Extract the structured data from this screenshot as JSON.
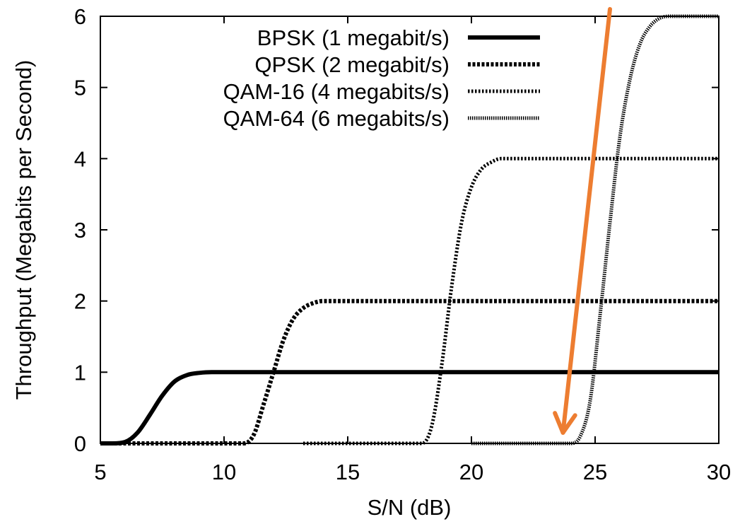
{
  "chart_data": {
    "type": "line",
    "title": "",
    "xlabel": "S/N (dB)",
    "ylabel": "Throughput (Megabits per Second)",
    "xlim": [
      5,
      30
    ],
    "ylim": [
      0,
      6
    ],
    "xticks": [
      "5",
      "10",
      "15",
      "20",
      "25",
      "30"
    ],
    "yticks": [
      "0",
      "1",
      "2",
      "3",
      "4",
      "5",
      "6"
    ],
    "grid": false,
    "legend_position": "top-right",
    "series": [
      {
        "name": "BPSK (1 megabit/s)",
        "style": "solid",
        "x": [
          5,
          5.5,
          6,
          6.5,
          7,
          7.5,
          8,
          8.5,
          9,
          9.5,
          10,
          12,
          15,
          20,
          25,
          30
        ],
        "y": [
          0,
          0,
          0.02,
          0.15,
          0.4,
          0.67,
          0.87,
          0.96,
          0.99,
          1,
          1,
          1,
          1,
          1,
          1,
          1
        ]
      },
      {
        "name": "QPSK (2 megabit/s)",
        "style": "dashed",
        "x": [
          5,
          8,
          10.8,
          11.2,
          11.6,
          12,
          12.4,
          12.8,
          13.2,
          13.6,
          14,
          15,
          20,
          25,
          30
        ],
        "y": [
          0,
          0,
          0,
          0.12,
          0.55,
          1.0,
          1.45,
          1.75,
          1.9,
          1.97,
          2,
          2,
          2,
          2,
          2
        ]
      },
      {
        "name": "QAM-16 (4 megabits/s)",
        "style": "dotted",
        "x": [
          13.2,
          16,
          18.0,
          18.4,
          18.8,
          19.2,
          19.6,
          20.0,
          20.4,
          20.8,
          21.2,
          22,
          25,
          30
        ],
        "y": [
          0,
          0,
          0,
          0.25,
          1.1,
          2.2,
          3.1,
          3.6,
          3.85,
          3.95,
          4,
          4,
          4,
          4
        ]
      },
      {
        "name": "QAM-64 (6 megabits/s)",
        "style": "densely-dotted",
        "x": [
          20.0,
          22,
          24.0,
          24.4,
          24.8,
          25.2,
          25.6,
          26.0,
          26.4,
          26.8,
          27.2,
          27.6,
          28,
          29,
          30
        ],
        "y": [
          0,
          0,
          0,
          0.1,
          0.6,
          1.8,
          3.1,
          4.3,
          5.1,
          5.6,
          5.85,
          5.97,
          6,
          6,
          6
        ]
      }
    ],
    "annotations": [
      {
        "type": "arrow",
        "color": "#ED7D31",
        "from": [
          25.6,
          6.1
        ],
        "to": [
          23.7,
          0.15
        ]
      }
    ]
  }
}
